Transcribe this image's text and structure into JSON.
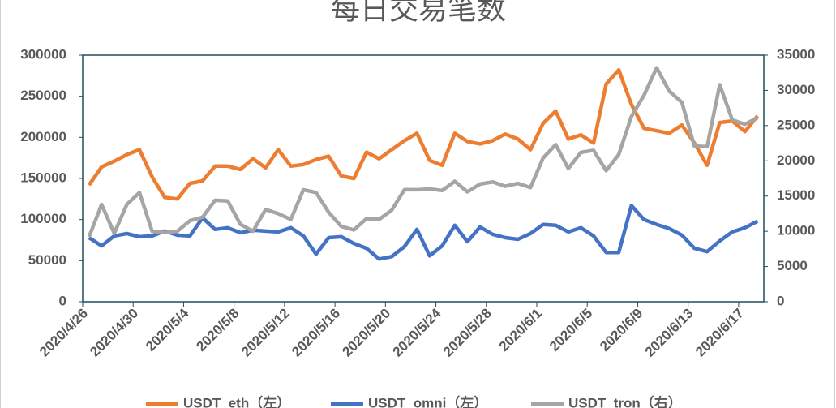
{
  "chart_data": {
    "type": "line",
    "title": "每日交易笔数",
    "categories": [
      "2020/4/26",
      null,
      null,
      null,
      "2020/4/30",
      null,
      null,
      null,
      "2020/5/4",
      null,
      null,
      null,
      "2020/5/8",
      null,
      null,
      null,
      "2020/5/12",
      null,
      null,
      null,
      "2020/5/16",
      null,
      null,
      null,
      "2020/5/20",
      null,
      null,
      null,
      "2020/5/24",
      null,
      null,
      null,
      "2020/5/28",
      null,
      null,
      null,
      "2020/6/1",
      null,
      null,
      null,
      "2020/6/5",
      null,
      null,
      null,
      "2020/6/9",
      null,
      null,
      null,
      "2020/6/13",
      null,
      null,
      null,
      "2020/6/17",
      null
    ],
    "series": [
      {
        "name": "USDT_eth（左）",
        "color": "#ed7d31",
        "values": [
          142000,
          164000,
          171000,
          179000,
          185000,
          152000,
          127000,
          125000,
          144000,
          147000,
          165000,
          165000,
          161000,
          174000,
          163000,
          185000,
          165000,
          167000,
          173000,
          177000,
          153000,
          150000,
          182000,
          174000,
          185000,
          196000,
          205000,
          172000,
          166000,
          205000,
          195000,
          192000,
          196000,
          204000,
          198000,
          185000,
          217000,
          232000,
          198000,
          203000,
          193000,
          265000,
          282000,
          240000,
          211000,
          208000,
          205000,
          215000,
          193000,
          166000,
          218000,
          220000,
          207000,
          226000
        ]
      },
      {
        "name": "USDT_omni（左）",
        "color": "#4472c4",
        "values": [
          78000,
          68000,
          80000,
          83000,
          79000,
          80000,
          86000,
          81000,
          80000,
          102000,
          88000,
          90000,
          84000,
          87000,
          86000,
          85000,
          90000,
          80000,
          58000,
          78000,
          79000,
          71000,
          65000,
          52000,
          55000,
          67000,
          88000,
          56000,
          68000,
          93000,
          73000,
          91000,
          82000,
          78000,
          76000,
          83000,
          94000,
          93000,
          85000,
          90000,
          80000,
          60000,
          60000,
          117000,
          100000,
          94000,
          89000,
          81000,
          65000,
          61000,
          74000,
          85000,
          90000,
          98000
        ]
      },
      {
        "name": "USDT_tron（右）",
        "color": "#a5a5a5",
        "axis": "y2",
        "values": [
          9200,
          13800,
          9700,
          13800,
          15500,
          10000,
          9800,
          10000,
          11500,
          12000,
          14400,
          14300,
          11000,
          10000,
          13100,
          12500,
          11700,
          15900,
          15500,
          12700,
          10700,
          10200,
          11800,
          11700,
          13000,
          15900,
          15900,
          16000,
          15800,
          17100,
          15600,
          16700,
          17000,
          16400,
          16800,
          16200,
          20400,
          22300,
          18900,
          21200,
          21500,
          18600,
          20900,
          26300,
          29300,
          33200,
          29900,
          28300,
          22100,
          22000,
          30800,
          25800,
          25200,
          26100
        ]
      }
    ],
    "ylim": [
      0,
      300000
    ],
    "yticks": [
      0,
      50000,
      100000,
      150000,
      200000,
      250000,
      300000
    ],
    "y2lim": [
      0,
      35000
    ],
    "y2ticks": [
      0,
      5000,
      10000,
      15000,
      20000,
      25000,
      30000,
      35000
    ],
    "legend": "bottom"
  }
}
